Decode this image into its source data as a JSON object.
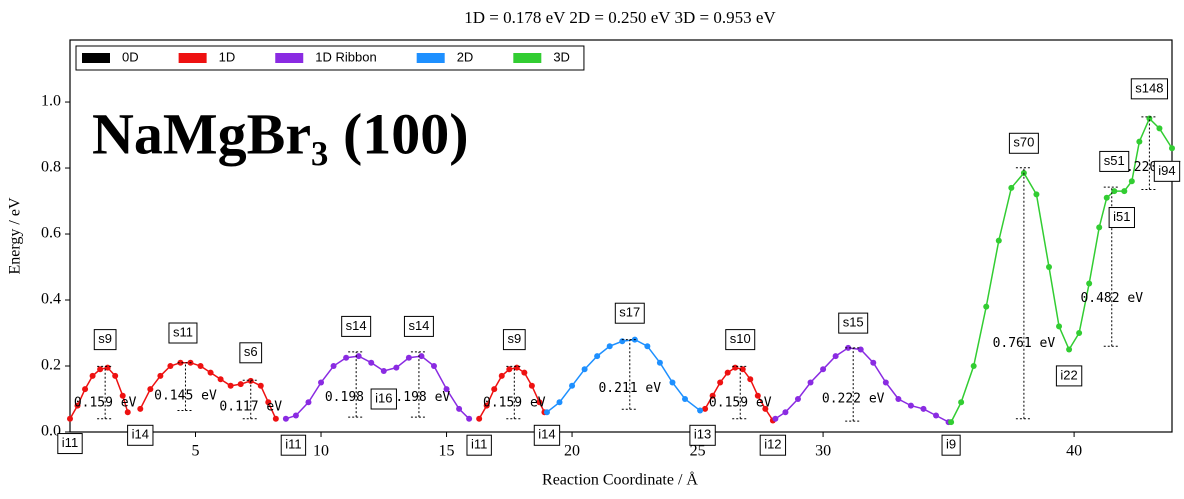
{
  "chart_data": {
    "type": "line",
    "title": "1D = 0.178 eV      2D = 0.250 eV      3D = 0.953 eV",
    "annotation": "NaMgBr₃ (100)",
    "x_label": "Reaction Coordinate / Å",
    "y_label": "Energy / eV",
    "xlim": [
      0,
      43.9
    ],
    "ylim": [
      0,
      1.188
    ],
    "xticks": [
      5,
      10,
      15,
      20,
      25,
      30,
      40
    ],
    "yticks": [
      {
        "value": 0,
        "label": "0.0"
      },
      0.2,
      0.4,
      0.6,
      0.8,
      {
        "value": 1,
        "label": "1.0"
      }
    ],
    "legend": "upper left",
    "series": [
      {
        "name": "0D",
        "color": "#000000",
        "x": [],
        "values": []
      },
      {
        "name": "1D",
        "color": "#ee1111",
        "x": [
          0,
          0.3,
          0.6,
          0.9,
          1.2,
          1.5,
          1.8,
          2.1,
          2.3,
          null,
          2.8,
          3.2,
          3.6,
          4.0,
          4.4,
          4.8,
          5.2,
          5.6,
          6.0,
          6.4,
          6.8,
          7.2,
          7.6,
          7.9,
          8.2,
          null,
          16.3,
          16.6,
          16.9,
          17.2,
          17.5,
          17.8,
          18.1,
          18.4,
          18.7,
          18.9,
          null,
          25.3,
          25.6,
          25.9,
          26.2,
          26.5,
          26.8,
          27.1,
          27.4,
          27.7,
          28.0
        ],
        "values": [
          0.04,
          0.08,
          0.13,
          0.17,
          0.19,
          0.195,
          0.17,
          0.11,
          0.06,
          null,
          0.07,
          0.13,
          0.17,
          0.2,
          0.21,
          0.21,
          0.2,
          0.18,
          0.16,
          0.14,
          0.145,
          0.155,
          0.14,
          0.09,
          0.04,
          null,
          0.04,
          0.08,
          0.13,
          0.17,
          0.19,
          0.195,
          0.18,
          0.14,
          0.09,
          0.06,
          null,
          0.07,
          0.11,
          0.15,
          0.18,
          0.195,
          0.19,
          0.16,
          0.11,
          0.07,
          0.035
        ]
      },
      {
        "name": "1D Ribbon",
        "color": "#8a2be2",
        "x": [
          8.6,
          9.0,
          9.5,
          10.0,
          10.5,
          11.0,
          11.5,
          12.0,
          12.5,
          13.0,
          13.5,
          14.0,
          14.5,
          15.0,
          15.5,
          15.9,
          null,
          28.1,
          28.5,
          29.0,
          29.5,
          30.0,
          30.5,
          31.0,
          31.5,
          32.0,
          32.5,
          33.0,
          33.5,
          34.0,
          34.5,
          35.0
        ],
        "values": [
          0.04,
          0.05,
          0.09,
          0.15,
          0.2,
          0.225,
          0.23,
          0.21,
          0.185,
          0.195,
          0.225,
          0.23,
          0.2,
          0.13,
          0.07,
          0.04,
          null,
          0.04,
          0.06,
          0.1,
          0.15,
          0.19,
          0.23,
          0.255,
          0.25,
          0.21,
          0.15,
          0.1,
          0.08,
          0.07,
          0.05,
          0.03
        ]
      },
      {
        "name": "2D",
        "color": "#1e90ff",
        "x": [
          19.0,
          19.5,
          20.0,
          20.5,
          21.0,
          21.5,
          22.0,
          22.5,
          23.0,
          23.5,
          24.0,
          24.5,
          25.1
        ],
        "values": [
          0.06,
          0.09,
          0.14,
          0.19,
          0.23,
          0.26,
          0.275,
          0.28,
          0.26,
          0.21,
          0.15,
          0.1,
          0.065
        ]
      },
      {
        "name": "3D",
        "color": "#32cd32",
        "x": [
          35.1,
          35.5,
          36.0,
          36.5,
          37.0,
          37.5,
          38.0,
          38.5,
          39.0,
          39.4,
          39.8,
          40.2,
          40.6,
          41.0,
          41.3,
          41.6,
          42.0,
          42.3,
          42.6,
          43.0,
          43.4,
          43.9
        ],
        "values": [
          0.03,
          0.09,
          0.2,
          0.38,
          0.58,
          0.74,
          0.785,
          0.72,
          0.5,
          0.32,
          0.25,
          0.3,
          0.45,
          0.62,
          0.71,
          0.73,
          0.73,
          0.76,
          0.88,
          0.95,
          0.92,
          0.86
        ]
      }
    ],
    "point_labels": [
      {
        "text": "s9",
        "x": 1.4,
        "y": 0.28
      },
      {
        "text": "s11",
        "x": 4.5,
        "y": 0.3
      },
      {
        "text": "s6",
        "x": 7.2,
        "y": 0.24
      },
      {
        "text": "s14",
        "x": 11.4,
        "y": 0.32
      },
      {
        "text": "s14",
        "x": 13.9,
        "y": 0.32
      },
      {
        "text": "s9",
        "x": 17.7,
        "y": 0.28
      },
      {
        "text": "s17",
        "x": 22.3,
        "y": 0.36
      },
      {
        "text": "s10",
        "x": 26.7,
        "y": 0.28
      },
      {
        "text": "s15",
        "x": 31.2,
        "y": 0.33
      },
      {
        "text": "s70",
        "x": 38.0,
        "y": 0.875
      },
      {
        "text": "s148",
        "x": 43.0,
        "y": 1.04
      },
      {
        "text": "s51",
        "x": 41.6,
        "y": 0.82
      },
      {
        "text": "i94",
        "x": 43.7,
        "y": 0.79
      },
      {
        "text": "i51",
        "x": 41.9,
        "y": 0.65
      },
      {
        "text": "i22",
        "x": 39.8,
        "y": 0.17
      },
      {
        "text": "i16",
        "x": 12.5,
        "y": 0.1
      },
      {
        "text": "i11",
        "x": 0,
        "y": -0.035
      },
      {
        "text": "i14",
        "x": 2.8,
        "y": -0.01
      },
      {
        "text": "i11",
        "x": 8.9,
        "y": -0.04
      },
      {
        "text": "i11",
        "x": 16.3,
        "y": -0.04
      },
      {
        "text": "i14",
        "x": 19.0,
        "y": -0.01
      },
      {
        "text": "i13",
        "x": 25.2,
        "y": -0.01
      },
      {
        "text": "i12",
        "x": 28.0,
        "y": -0.04
      },
      {
        "text": "i9",
        "x": 35.1,
        "y": -0.04
      }
    ],
    "barriers": [
      {
        "x": 1.4,
        "base": 0.04,
        "value": 0.159,
        "label": "0.159 eV"
      },
      {
        "x": 4.6,
        "base": 0.065,
        "value": 0.145,
        "label": "0.145 eV"
      },
      {
        "x": 7.2,
        "base": 0.04,
        "value": 0.117,
        "label": "0.117 eV"
      },
      {
        "x": 11.4,
        "base": 0.045,
        "value": 0.198,
        "label": "0.198 eV"
      },
      {
        "x": 13.9,
        "base": 0.045,
        "value": 0.198,
        "label": "0.198 eV"
      },
      {
        "x": 17.7,
        "base": 0.04,
        "value": 0.159,
        "label": "0.159 eV"
      },
      {
        "x": 22.3,
        "base": 0.069,
        "value": 0.211,
        "label": "0.211 eV"
      },
      {
        "x": 26.7,
        "base": 0.04,
        "value": 0.159,
        "label": "0.159 eV"
      },
      {
        "x": 31.2,
        "base": 0.033,
        "value": 0.222,
        "label": "0.222 eV"
      },
      {
        "x": 38.0,
        "base": 0.04,
        "value": 0.761,
        "label": "0.761 eV"
      },
      {
        "x": 41.5,
        "base": 0.26,
        "value": 0.482,
        "label": "0.482 eV"
      },
      {
        "x": 43.0,
        "base": 0.735,
        "value": 0.22,
        "label": "0.220 eV"
      }
    ]
  }
}
